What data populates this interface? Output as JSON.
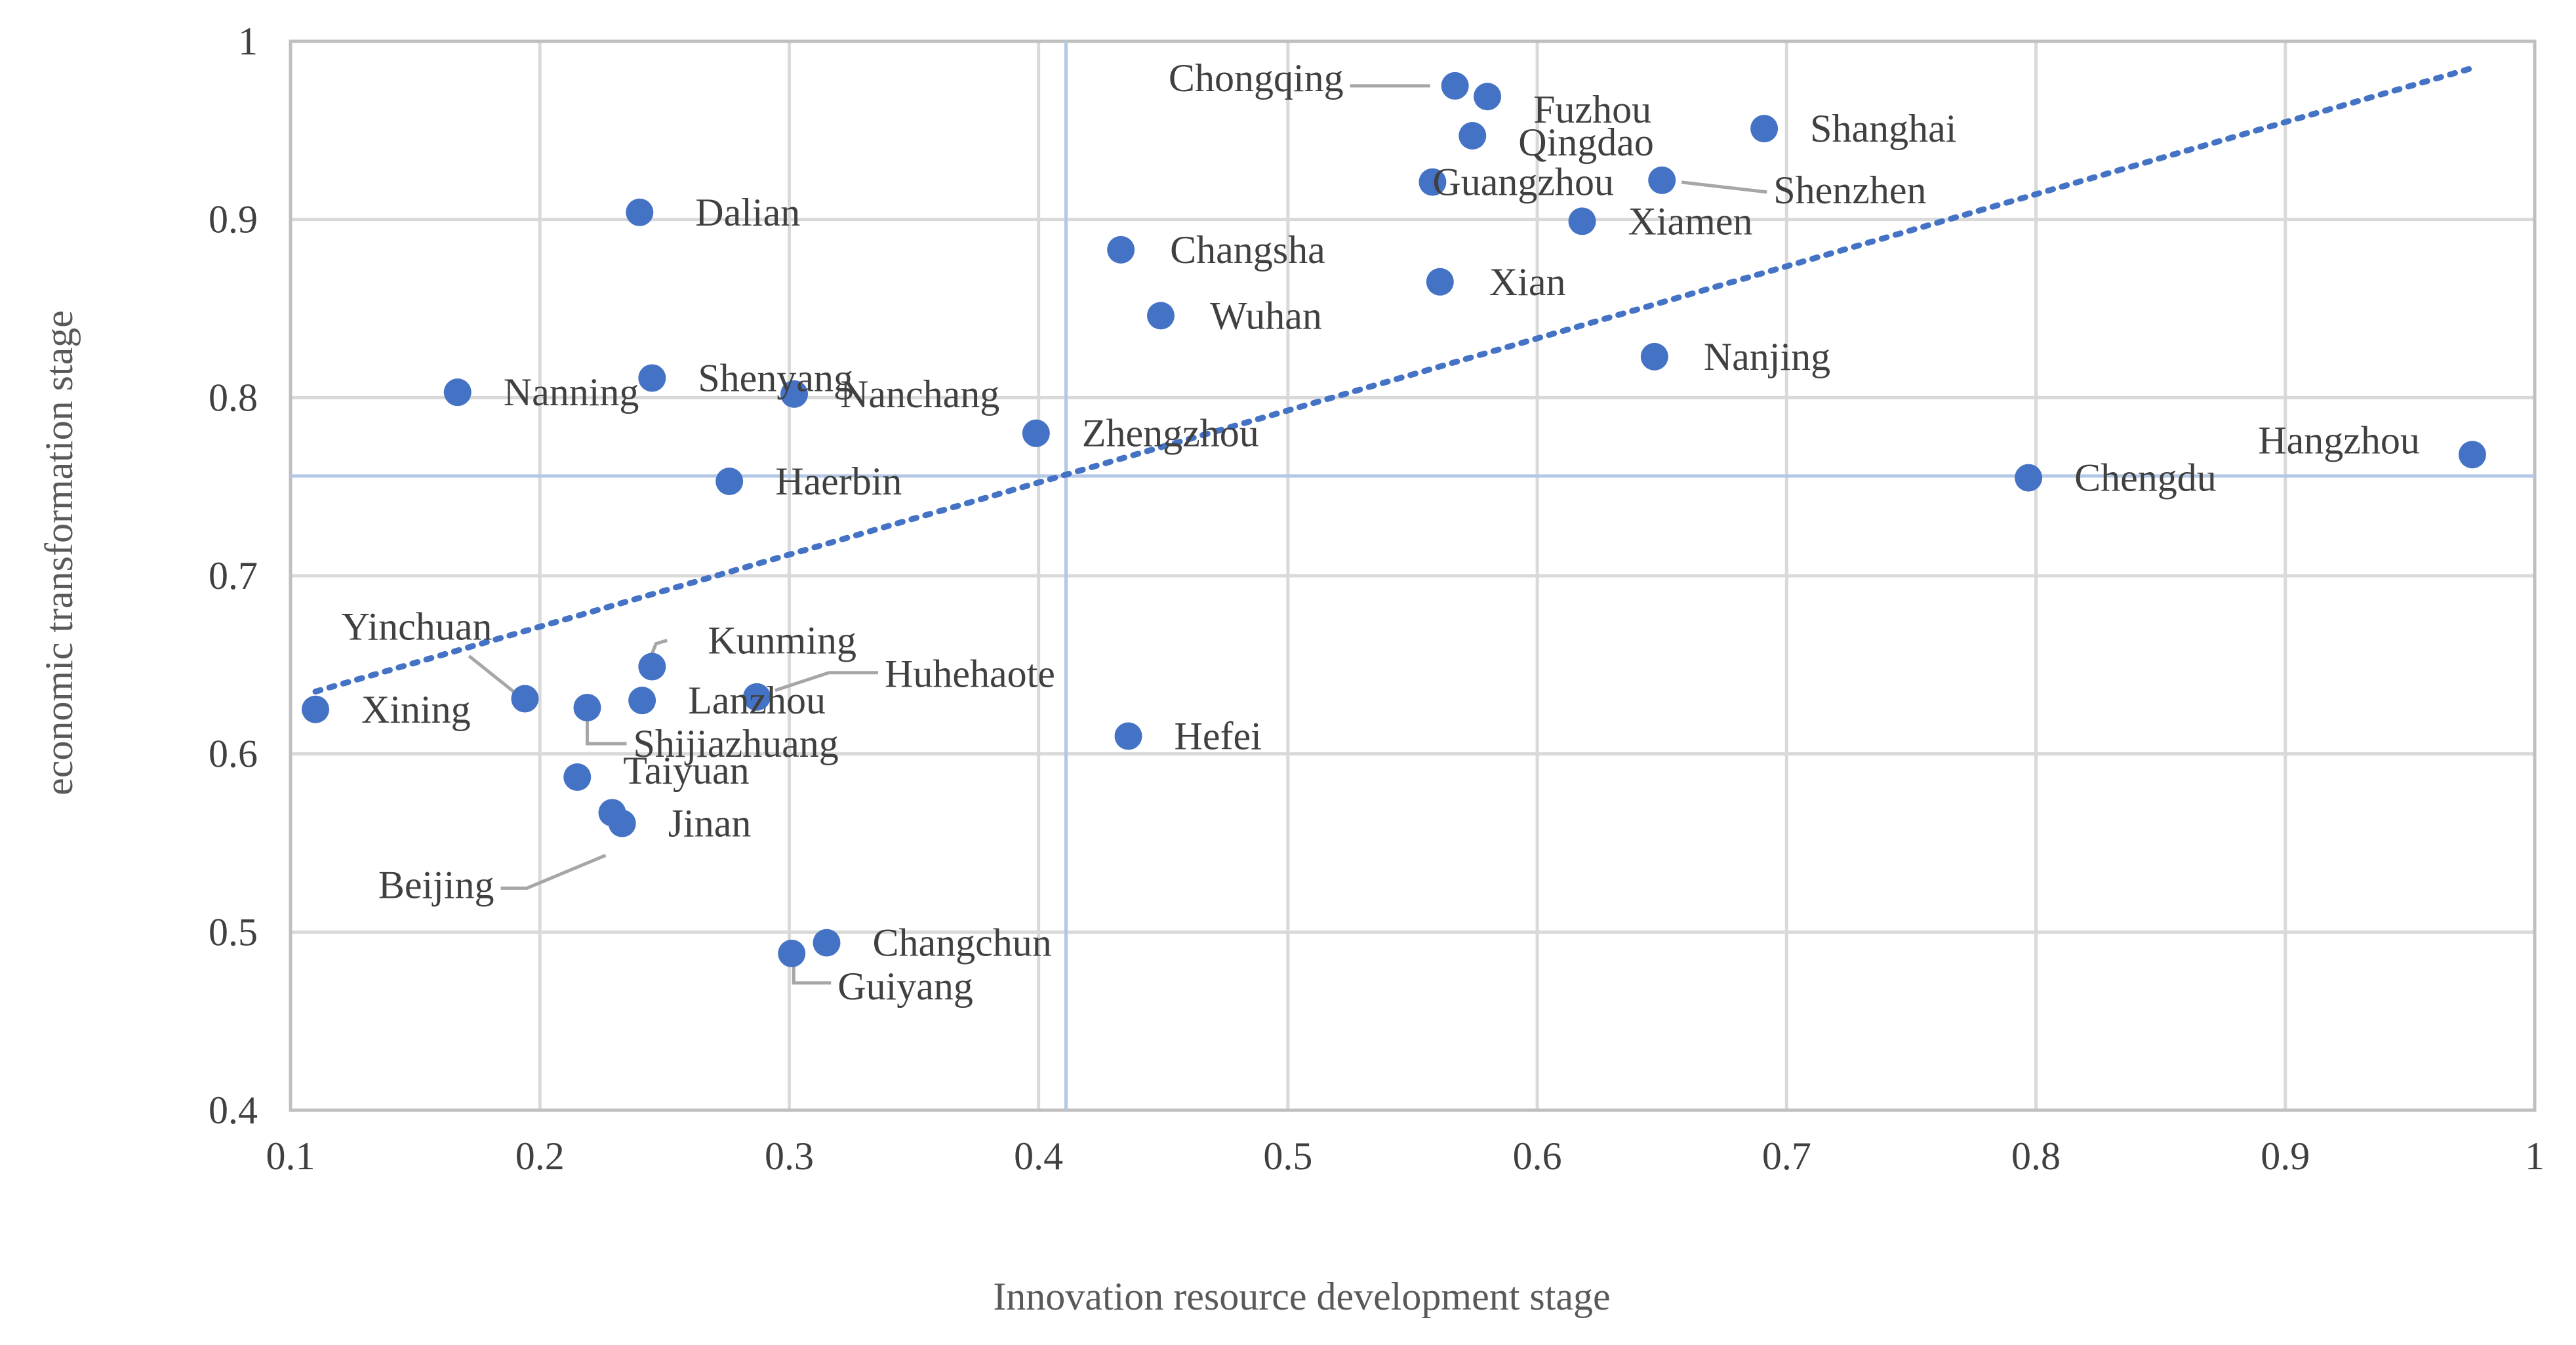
{
  "chart_data": {
    "type": "scatter",
    "title": "",
    "xlabel": "Innovation resource development stage",
    "ylabel": "economic transformation stage",
    "xlim": [
      0.1,
      1.0
    ],
    "ylim": [
      0.4,
      1.0
    ],
    "x_ticks": [
      "0.1",
      "0.2",
      "0.3",
      "0.4",
      "0.5",
      "0.6",
      "0.7",
      "0.8",
      "0.9",
      "1"
    ],
    "y_ticks": [
      "0.4",
      "0.5",
      "0.6",
      "0.7",
      "0.8",
      "0.9",
      "1"
    ],
    "grid": true,
    "marker_color": "#4472c4",
    "trendline": {
      "type": "linear",
      "style": "dotted",
      "color": "#4472c4",
      "from": [
        0.11,
        0.635
      ],
      "to": [
        0.975,
        0.985
      ]
    },
    "reference_lines": {
      "color": "#b4c7e7",
      "x": 0.411,
      "y": 0.756
    },
    "points": [
      {
        "name": "Chongqing",
        "x": 0.567,
        "y": 0.975
      },
      {
        "name": "Fuzhou",
        "x": 0.58,
        "y": 0.969
      },
      {
        "name": "Qingdao",
        "x": 0.574,
        "y": 0.947
      },
      {
        "name": "Shanghai",
        "x": 0.691,
        "y": 0.951
      },
      {
        "name": "Guangzhou",
        "x": 0.558,
        "y": 0.921
      },
      {
        "name": "Shenzhen",
        "x": 0.65,
        "y": 0.922
      },
      {
        "name": "Xiamen",
        "x": 0.618,
        "y": 0.899
      },
      {
        "name": "Dalian",
        "x": 0.24,
        "y": 0.904
      },
      {
        "name": "Changsha",
        "x": 0.433,
        "y": 0.883
      },
      {
        "name": "Xian",
        "x": 0.561,
        "y": 0.865
      },
      {
        "name": "Wuhan",
        "x": 0.449,
        "y": 0.846
      },
      {
        "name": "Nanjing",
        "x": 0.647,
        "y": 0.823
      },
      {
        "name": "Nanning",
        "x": 0.167,
        "y": 0.803
      },
      {
        "name": "Shenyang",
        "x": 0.245,
        "y": 0.811
      },
      {
        "name": "Nanchang",
        "x": 0.302,
        "y": 0.802
      },
      {
        "name": "Zhengzhou",
        "x": 0.399,
        "y": 0.78
      },
      {
        "name": "Haerbin",
        "x": 0.276,
        "y": 0.753
      },
      {
        "name": "Chengdu",
        "x": 0.797,
        "y": 0.755
      },
      {
        "name": "Hangzhou",
        "x": 0.975,
        "y": 0.768
      },
      {
        "name": "Yinchuan",
        "x": 0.194,
        "y": 0.631
      },
      {
        "name": "Kunming",
        "x": 0.245,
        "y": 0.649
      },
      {
        "name": "Huhehaote",
        "x": 0.287,
        "y": 0.632
      },
      {
        "name": "Xining",
        "x": 0.11,
        "y": 0.625
      },
      {
        "name": "Lanzhou",
        "x": 0.241,
        "y": 0.63
      },
      {
        "name": "Shijiazhuang",
        "x": 0.219,
        "y": 0.626
      },
      {
        "name": "Hefei",
        "x": 0.436,
        "y": 0.61
      },
      {
        "name": "Taiyuan",
        "x": 0.215,
        "y": 0.587
      },
      {
        "name": "Beijing",
        "x": 0.229,
        "y": 0.567
      },
      {
        "name": "Jinan",
        "x": 0.233,
        "y": 0.561
      },
      {
        "name": "Changchun",
        "x": 0.315,
        "y": 0.494
      },
      {
        "name": "Guiyang",
        "x": 0.301,
        "y": 0.488
      }
    ]
  }
}
